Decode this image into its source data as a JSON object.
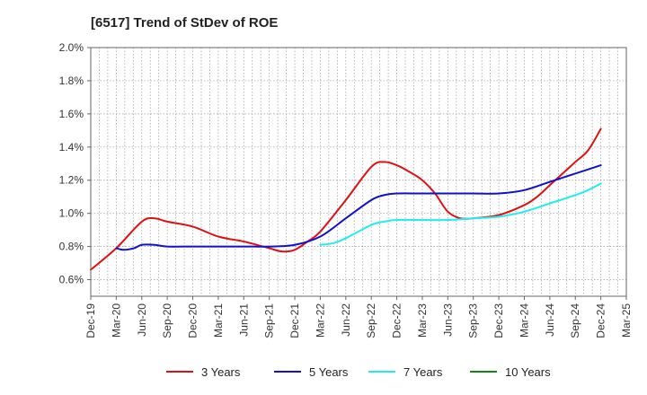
{
  "chart_data": {
    "type": "line",
    "title": "[6517]  Trend of StDev of ROE",
    "xlabel": "",
    "ylabel": "",
    "ylim": [
      0.5,
      2.0
    ],
    "y_ticks": [
      "0.6%",
      "0.8%",
      "1.0%",
      "1.2%",
      "1.4%",
      "1.6%",
      "1.8%",
      "2.0%"
    ],
    "y_tick_values": [
      0.6,
      0.8,
      1.0,
      1.2,
      1.4,
      1.6,
      1.8,
      2.0
    ],
    "x_ticks": [
      "Dec-19",
      "Mar-20",
      "Jun-20",
      "Sep-20",
      "Dec-20",
      "Mar-21",
      "Jun-21",
      "Sep-21",
      "Dec-21",
      "Mar-22",
      "Jun-22",
      "Sep-22",
      "Dec-22",
      "Mar-23",
      "Jun-23",
      "Sep-23",
      "Dec-23",
      "Mar-24",
      "Jun-24",
      "Sep-24",
      "Dec-24",
      "Mar-25"
    ],
    "grid": true,
    "legend_position": "bottom",
    "series": [
      {
        "name": "3 Years",
        "color": "#dd1111",
        "points": [
          [
            0,
            0.66
          ],
          [
            1,
            0.79
          ],
          [
            2,
            0.95
          ],
          [
            2.5,
            0.97
          ],
          [
            3,
            0.95
          ],
          [
            4,
            0.92
          ],
          [
            5,
            0.86
          ],
          [
            6,
            0.83
          ],
          [
            7,
            0.79
          ],
          [
            7.5,
            0.77
          ],
          [
            8,
            0.78
          ],
          [
            8.5,
            0.83
          ],
          [
            9,
            0.89
          ],
          [
            10,
            1.08
          ],
          [
            11,
            1.28
          ],
          [
            11.5,
            1.31
          ],
          [
            12,
            1.29
          ],
          [
            12.5,
            1.25
          ],
          [
            13,
            1.2
          ],
          [
            13.5,
            1.12
          ],
          [
            14,
            1.01
          ],
          [
            14.5,
            0.97
          ],
          [
            15,
            0.97
          ],
          [
            16,
            0.99
          ],
          [
            17,
            1.05
          ],
          [
            17.5,
            1.1
          ],
          [
            18,
            1.17
          ],
          [
            18.5,
            1.24
          ],
          [
            19,
            1.31
          ],
          [
            19.5,
            1.38
          ],
          [
            20,
            1.51
          ]
        ]
      },
      {
        "name": "5 Years",
        "color": "#1111cc",
        "points": [
          [
            1,
            0.79
          ],
          [
            1.3,
            0.78
          ],
          [
            1.7,
            0.79
          ],
          [
            2,
            0.81
          ],
          [
            2.5,
            0.81
          ],
          [
            3,
            0.8
          ],
          [
            4,
            0.8
          ],
          [
            5,
            0.8
          ],
          [
            6,
            0.8
          ],
          [
            7,
            0.8
          ],
          [
            8,
            0.81
          ],
          [
            9,
            0.86
          ],
          [
            10,
            0.97
          ],
          [
            11,
            1.08
          ],
          [
            11.5,
            1.11
          ],
          [
            12,
            1.12
          ],
          [
            13,
            1.12
          ],
          [
            14,
            1.12
          ],
          [
            15,
            1.12
          ],
          [
            16,
            1.12
          ],
          [
            17,
            1.14
          ],
          [
            18,
            1.19
          ],
          [
            19,
            1.24
          ],
          [
            20,
            1.29
          ]
        ]
      },
      {
        "name": "7 Years",
        "color": "#22eeee",
        "points": [
          [
            9,
            0.81
          ],
          [
            9.5,
            0.82
          ],
          [
            10,
            0.85
          ],
          [
            11,
            0.93
          ],
          [
            11.5,
            0.95
          ],
          [
            12,
            0.96
          ],
          [
            13,
            0.96
          ],
          [
            14,
            0.96
          ],
          [
            15,
            0.97
          ],
          [
            16,
            0.98
          ],
          [
            17,
            1.01
          ],
          [
            18,
            1.06
          ],
          [
            19,
            1.11
          ],
          [
            19.5,
            1.14
          ],
          [
            20,
            1.18
          ]
        ]
      },
      {
        "name": "10 Years",
        "color": "#118811",
        "points": []
      }
    ]
  }
}
